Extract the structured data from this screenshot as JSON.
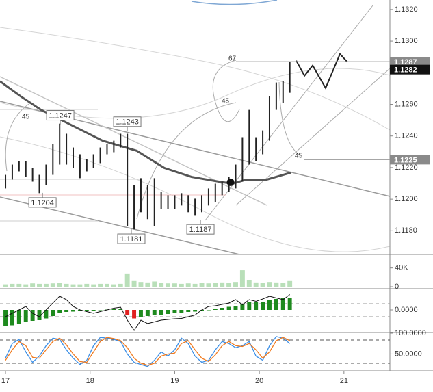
{
  "chart_data": [
    {
      "type": "ohlc",
      "x": [
        17,
        17.08,
        17.16,
        17.24,
        17.32,
        17.4,
        17.48,
        17.56,
        17.64,
        17.72,
        17.8,
        17.88,
        17.96,
        18.04,
        18.12,
        18.2,
        18.28,
        18.36,
        18.44,
        18.52,
        18.6,
        18.68,
        18.76,
        18.84,
        18.92,
        19,
        19.08,
        19.16,
        19.24,
        19.32,
        19.4,
        19.48,
        19.56,
        19.64,
        19.72,
        19.8,
        19.88,
        19.96,
        20.04,
        20.12,
        20.2,
        20.28,
        20.36
      ],
      "high": [
        1.12154,
        1.12219,
        1.12241,
        1.12241,
        1.12198,
        1.12154,
        1.12219,
        1.12349,
        1.12478,
        1.12414,
        1.12327,
        1.12284,
        1.12254,
        1.12284,
        1.12327,
        1.12349,
        1.1237,
        1.12414,
        1.12414,
        1.1209,
        1.12133,
        1.1209,
        1.12133,
        1.12046,
        1.12025,
        1.12025,
        1.12038,
        1.12025,
        1.12003,
        1.12025,
        1.12068,
        1.12098,
        1.12111,
        1.12141,
        1.12219,
        1.12392,
        1.12565,
        1.12392,
        1.12435,
        1.12651,
        1.12738,
        1.12746,
        1.12867
      ],
      "low": [
        1.12068,
        1.12124,
        1.12176,
        1.12141,
        1.12111,
        1.12038,
        1.1209,
        1.12154,
        1.12219,
        1.12219,
        1.12198,
        1.12133,
        1.12176,
        1.12198,
        1.12228,
        1.12284,
        1.12297,
        1.12327,
        1.1183,
        1.11809,
        1.11917,
        1.11874,
        1.1183,
        1.11938,
        1.11938,
        1.11938,
        1.1196,
        1.11917,
        1.11895,
        1.11917,
        1.1196,
        1.11982,
        1.12025,
        1.12046,
        1.12068,
        1.12111,
        1.12219,
        1.12241,
        1.12284,
        1.1237,
        1.12565,
        1.12608,
        1.12673
      ],
      "color": "#222222",
      "moving_average": {
        "color": "#555555",
        "x": [
          16.935,
          17.178,
          17.42,
          17.744,
          18.148,
          18.552,
          18.876,
          19.199,
          19.522,
          19.684,
          19.846,
          20.088,
          20.371
        ],
        "values": [
          1.12746,
          1.12651,
          1.12565,
          1.12478,
          1.1237,
          1.12306,
          1.12198,
          1.12141,
          1.12111,
          1.12098,
          1.12124,
          1.12124,
          1.12168
        ]
      },
      "projection": {
        "color": "#222222",
        "x": [
          20.436,
          20.533,
          20.63,
          20.783,
          20.953,
          21.042
        ],
        "values": [
          1.12876,
          1.12781,
          1.12846,
          1.12703,
          1.12919,
          1.12867
        ]
      },
      "marker": {
        "x": 19.66,
        "value": 1.12107
      },
      "callouts": [
        {
          "label": "1.1247",
          "value": 1.1247,
          "x": 17.647
        },
        {
          "label": "1.1243",
          "value": 1.1243,
          "x": 18.439
        },
        {
          "label": "1.1204",
          "value": 1.1204,
          "x": 17.437
        },
        {
          "label": "1.1181",
          "value": 1.1181,
          "x": 18.487
        },
        {
          "label": "1.1187",
          "value": 1.1187,
          "x": 19.304
        }
      ],
      "angle_labels": [
        45,
        67,
        45,
        45
      ],
      "price_badges": [
        {
          "value": 1.1287,
          "label": "1.1287",
          "color": "#8a8a8a"
        },
        {
          "value": 1.1282,
          "label": "1.1282",
          "color": "#111111"
        },
        {
          "value": 1.1225,
          "label": "1.1225",
          "color": "#8a8a8a"
        }
      ],
      "xlim": [
        16.935,
        21.543
      ],
      "xticks": [
        17,
        18,
        19,
        20,
        21
      ],
      "ylim": [
        1.1165,
        1.1326
      ],
      "yticks": [
        {
          "value": 1.118,
          "label": "1.1180"
        },
        {
          "value": 1.12,
          "label": "1.1200"
        },
        {
          "value": 1.122,
          "label": "1.1220"
        },
        {
          "value": 1.124,
          "label": "1.1240"
        },
        {
          "value": 1.126,
          "label": "1.1260"
        },
        {
          "value": 1.13,
          "label": "1.1300"
        },
        {
          "value": 1.132,
          "label": "1.1320"
        }
      ]
    },
    {
      "type": "bar",
      "values": [
        5000,
        6000,
        6000,
        5000,
        7000,
        6000,
        6000,
        7000,
        8000,
        6000,
        5000,
        5000,
        6000,
        5000,
        6000,
        6000,
        5000,
        6000,
        28000,
        12000,
        10000,
        9000,
        11000,
        8000,
        7000,
        7000,
        6000,
        7000,
        6000,
        8000,
        7000,
        8000,
        9000,
        8000,
        10000,
        35000,
        14000,
        9000,
        8000,
        10000,
        9000,
        8000,
        12000
      ],
      "color": "#b9dfb9",
      "ylim": [
        0,
        60000
      ],
      "yticks": [
        0,
        {
          "value": 40000,
          "label": "40K"
        }
      ]
    },
    {
      "type": "macd",
      "histogram": [
        -0.00048,
        -0.00045,
        -0.0004,
        -0.00035,
        -0.00032,
        -0.0003,
        -0.00025,
        -0.00018,
        -0.0001,
        -6e-05,
        -5e-05,
        -4e-05,
        -3e-05,
        -2e-05,
        -1e-05,
        1e-05,
        2e-05,
        3e-05,
        -0.00015,
        -0.00025,
        -0.0002,
        -0.00018,
        -0.00016,
        -0.00014,
        -0.00012,
        -0.0001,
        -8e-05,
        -6e-05,
        -5e-05,
        -3e-05,
        -1e-05,
        3e-05,
        6e-05,
        9e-05,
        0.00012,
        0.00018,
        0.00022,
        0.00023,
        0.00024,
        0.00028,
        0.00032,
        0.00035,
        0.00036
      ],
      "line": [
        -0.0002,
        -0.0001,
        0,
        0.0001,
        -0.0001,
        -0.0002,
        0,
        0.0002,
        0.0004,
        0.0003,
        0.0001,
        0,
        -5e-05,
        -0.0001,
        -5e-05,
        0,
        5e-05,
        8e-05,
        -0.0003,
        -0.0006,
        -0.0003,
        -0.0004,
        -0.00035,
        -0.0003,
        -0.00028,
        -0.00026,
        -0.00025,
        -0.0002,
        -0.00015,
        0,
        0.0001,
        0.00012,
        0.00016,
        0.0002,
        0.0003,
        0.00015,
        0.0003,
        0.00025,
        0.00032,
        0.0004,
        0.00035,
        0.0003,
        0.00045
      ],
      "up_color": "#1e8a1e",
      "down_color": "#e02020",
      "line_color": "#111111",
      "ylim": [
        -0.00064,
        0.00056
      ],
      "yticks": [
        {
          "value": 0,
          "label": "0.0000"
        }
      ]
    },
    {
      "type": "line",
      "series": [
        {
          "color": "#3a8ee6",
          "values": [
            40,
            75,
            85,
            55,
            30,
            45,
            70,
            88,
            85,
            60,
            40,
            25,
            35,
            70,
            90,
            88,
            85,
            80,
            50,
            30,
            25,
            20,
            35,
            55,
            45,
            60,
            88,
            75,
            45,
            30,
            35,
            60,
            80,
            75,
            65,
            70,
            80,
            45,
            35,
            70,
            92,
            88,
            75
          ]
        },
        {
          "color": "#f07a1e",
          "values": [
            35,
            60,
            80,
            70,
            42,
            40,
            60,
            80,
            88,
            72,
            50,
            32,
            30,
            55,
            80,
            90,
            87,
            82,
            65,
            40,
            28,
            23,
            28,
            45,
            50,
            52,
            75,
            82,
            60,
            40,
            32,
            48,
            70,
            80,
            70,
            68,
            75,
            60,
            40,
            55,
            82,
            90,
            82
          ]
        }
      ],
      "ylim": [
        13,
        100
      ],
      "yticks": [
        {
          "value": 50,
          "label": "50.0000"
        },
        {
          "value": 100,
          "label": "100.0000"
        }
      ]
    }
  ]
}
